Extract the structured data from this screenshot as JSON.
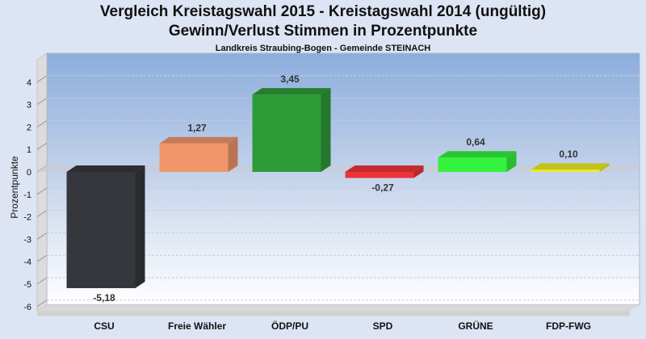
{
  "chart_data": {
    "type": "bar",
    "title": "Vergleich Kreistagswahl 2015 - Kreistagswahl 2014 (ungültig)",
    "subtitle": "Gewinn/Verlust Stimmen in Prozentpunkte",
    "caption": "Landkreis Straubing-Bogen - Gemeinde STEINACH",
    "xlabel": "",
    "ylabel": "Prozentpunkte",
    "ylim": [
      -6.2,
      5
    ],
    "yticks": [
      4,
      3,
      2,
      1,
      0,
      -1,
      -2,
      -3,
      -4,
      -5,
      -6
    ],
    "grid": true,
    "categories": [
      "CSU",
      "Freie Wähler",
      "ÖDP/PU",
      "SPD",
      "GRÜNE",
      "FDP-FWG"
    ],
    "values": [
      -5.18,
      1.27,
      3.45,
      -0.27,
      0.64,
      0.1
    ],
    "labels": [
      "-5,18",
      "1,27",
      "3,45",
      "-0,27",
      "0,64",
      "0,10"
    ],
    "colors": [
      "#35373c",
      "#f0956a",
      "#2e9a38",
      "#ee3338",
      "#33f23d",
      "#eeee22"
    ]
  }
}
